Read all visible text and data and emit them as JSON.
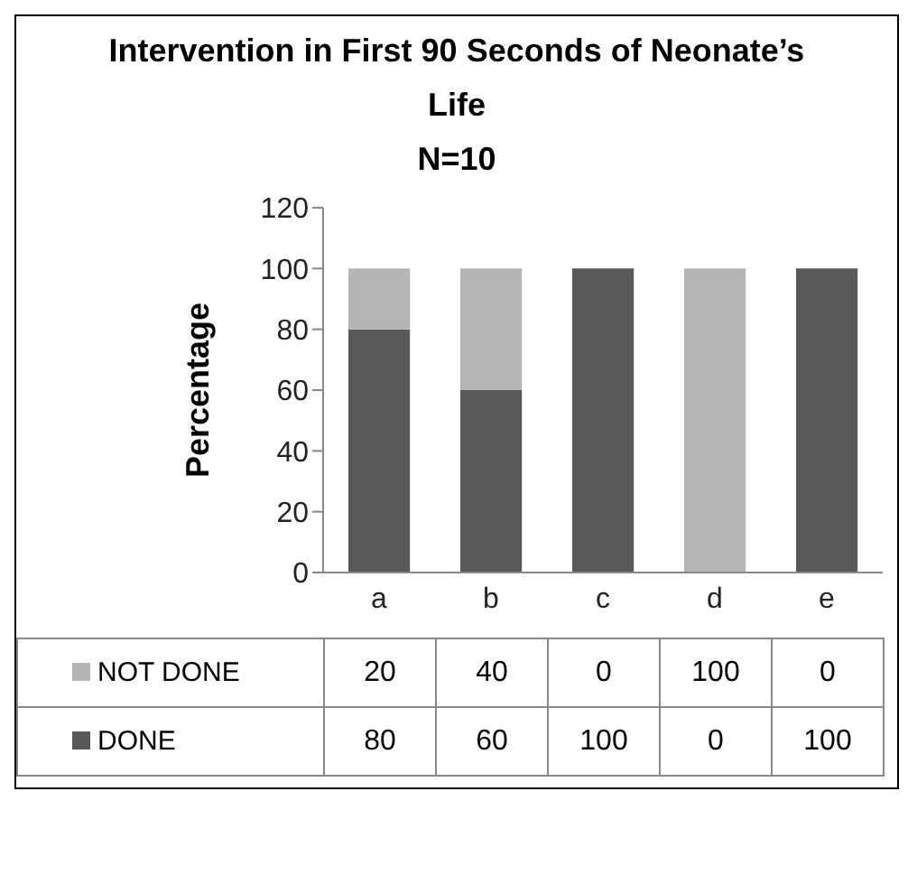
{
  "chart_data": {
    "type": "bar",
    "title": "Intervention in First 90 Seconds of Neonate’s Life",
    "subtitle": "N=10",
    "ylabel": "Percentage",
    "categories": [
      "a",
      "b",
      "c",
      "d",
      "e"
    ],
    "stacked": true,
    "series": [
      {
        "name": "DONE",
        "color": "#595959",
        "values": [
          80,
          60,
          100,
          0,
          100
        ]
      },
      {
        "name": "NOT DONE",
        "color": "#b5b5b5",
        "values": [
          20,
          40,
          0,
          100,
          0
        ]
      }
    ],
    "ylim": [
      0,
      120
    ],
    "yticks": [
      0,
      20,
      40,
      60,
      80,
      100,
      120
    ],
    "grid": false,
    "legend": "bottom",
    "data_labels": true
  }
}
